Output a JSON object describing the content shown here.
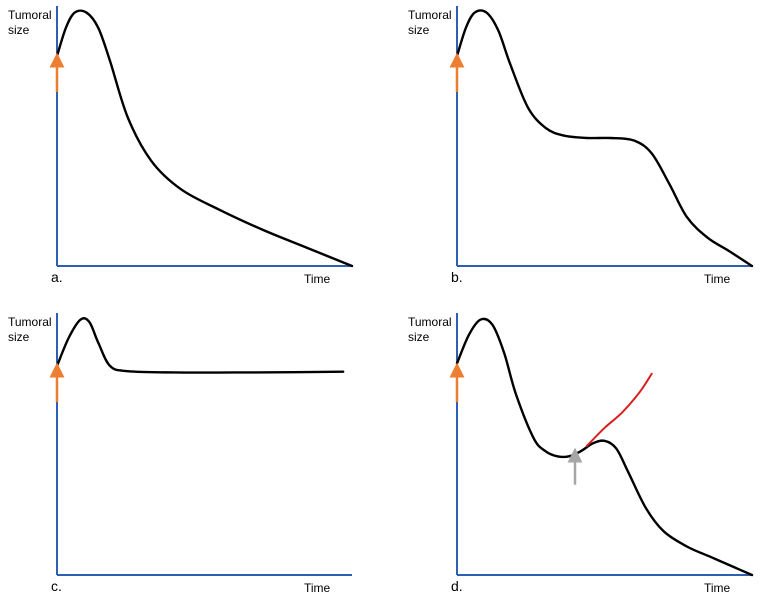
{
  "colors": {
    "axis": "#2f5fb3",
    "curve": "#000000",
    "treatment_arrow": "#ed7d31",
    "secondary_arrow": "#a6a6a6",
    "divergent_curve": "#d62020"
  },
  "chart_data": [
    {
      "type": "line",
      "panel_label": "a.",
      "ylabel": [
        "Tumoral",
        "size"
      ],
      "xlabel": "Time",
      "xlim": [
        0,
        100
      ],
      "ylim": [
        0,
        100
      ],
      "grid": false,
      "series": [
        {
          "role": "main",
          "x": [
            0,
            3,
            6,
            10,
            14,
            18,
            24,
            32,
            42,
            55,
            70,
            85,
            100
          ],
          "y": [
            82,
            93,
            99,
            99,
            93,
            80,
            58,
            41,
            30,
            22,
            14,
            7,
            0
          ]
        }
      ],
      "arrows": [
        {
          "x": 0,
          "y_from": 68,
          "y_to": 82,
          "role": "treatment"
        }
      ]
    },
    {
      "type": "line",
      "panel_label": "b.",
      "ylabel": [
        "Tumoral",
        "size"
      ],
      "xlabel": "Time",
      "xlim": [
        0,
        100
      ],
      "ylim": [
        0,
        100
      ],
      "grid": false,
      "series": [
        {
          "role": "main",
          "x": [
            0,
            3,
            6,
            10,
            14,
            18,
            24,
            30,
            36,
            44,
            52,
            60,
            66,
            72,
            78,
            85,
            92,
            100
          ],
          "y": [
            82,
            93,
            99,
            99,
            92,
            79,
            62,
            54,
            51,
            50,
            50,
            49,
            44,
            32,
            19,
            11,
            6,
            0
          ]
        }
      ],
      "arrows": [
        {
          "x": 0,
          "y_from": 68,
          "y_to": 82,
          "role": "treatment"
        }
      ]
    },
    {
      "type": "line",
      "panel_label": "c.",
      "ylabel": [
        "Tumoral",
        "size"
      ],
      "xlabel": "Time",
      "xlim": [
        0,
        100
      ],
      "ylim": [
        0,
        100
      ],
      "grid": false,
      "series": [
        {
          "role": "main",
          "x": [
            0,
            4,
            8,
            11,
            14,
            18,
            24,
            40,
            60,
            80,
            97
          ],
          "y": [
            81,
            92,
            99,
            98,
            90,
            81,
            79,
            78.5,
            78.5,
            78.6,
            78.8
          ]
        }
      ],
      "arrows": [
        {
          "x": 0,
          "y_from": 67,
          "y_to": 81,
          "role": "treatment"
        }
      ]
    },
    {
      "type": "line",
      "panel_label": "d.",
      "ylabel": [
        "Tumoral",
        "size"
      ],
      "xlabel": "Time",
      "xlim": [
        0,
        100
      ],
      "ylim": [
        0,
        100
      ],
      "grid": false,
      "series": [
        {
          "role": "main",
          "x": [
            0,
            4,
            8,
            12,
            16,
            20,
            26,
            30,
            34,
            38,
            42,
            46,
            50,
            54,
            58,
            64,
            70,
            78,
            86,
            94,
            100
          ],
          "y": [
            82,
            93,
            99,
            97,
            86,
            70,
            53,
            48,
            46,
            46,
            48,
            51,
            52,
            49,
            40,
            26,
            17,
            11,
            7,
            3,
            0
          ]
        },
        {
          "role": "divergent",
          "x": [
            44,
            50,
            56,
            62,
            66
          ],
          "y": [
            50,
            57,
            63,
            71,
            78
          ]
        }
      ],
      "arrows": [
        {
          "x": 0,
          "y_from": 67,
          "y_to": 81,
          "role": "treatment"
        },
        {
          "x": 40,
          "y_from": 35,
          "y_to": 48,
          "role": "secondary"
        }
      ]
    }
  ]
}
